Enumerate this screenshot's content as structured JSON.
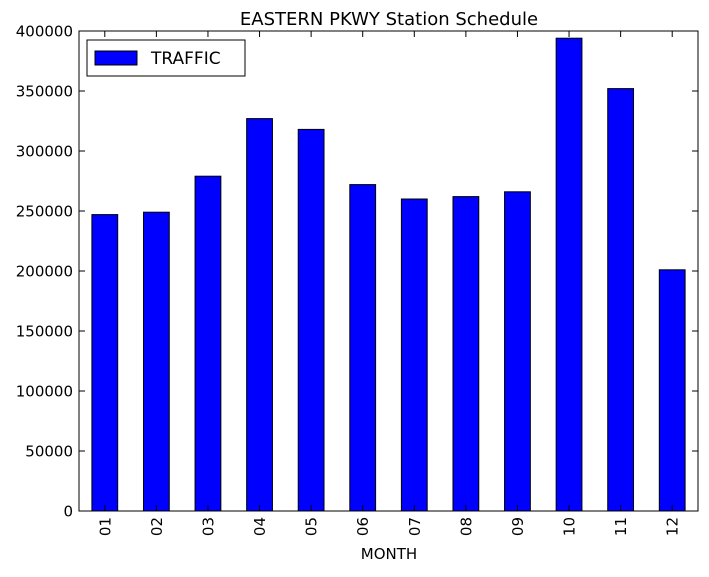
{
  "chart_data": {
    "type": "bar",
    "title": "EASTERN PKWY Station Schedule",
    "xlabel": "MONTH",
    "ylabel": "",
    "categories": [
      "01",
      "02",
      "03",
      "04",
      "05",
      "06",
      "07",
      "08",
      "09",
      "10",
      "11",
      "12"
    ],
    "series": [
      {
        "name": "TRAFFIC",
        "color": "#0000ff",
        "values": [
          247000,
          249000,
          279000,
          327000,
          318000,
          272000,
          260000,
          262000,
          266000,
          394000,
          352000,
          201000
        ]
      }
    ],
    "ylim": [
      0,
      400000
    ],
    "yticks": [
      0,
      50000,
      100000,
      150000,
      200000,
      250000,
      300000,
      350000,
      400000
    ],
    "legend_position": "top-left",
    "grid": false
  }
}
